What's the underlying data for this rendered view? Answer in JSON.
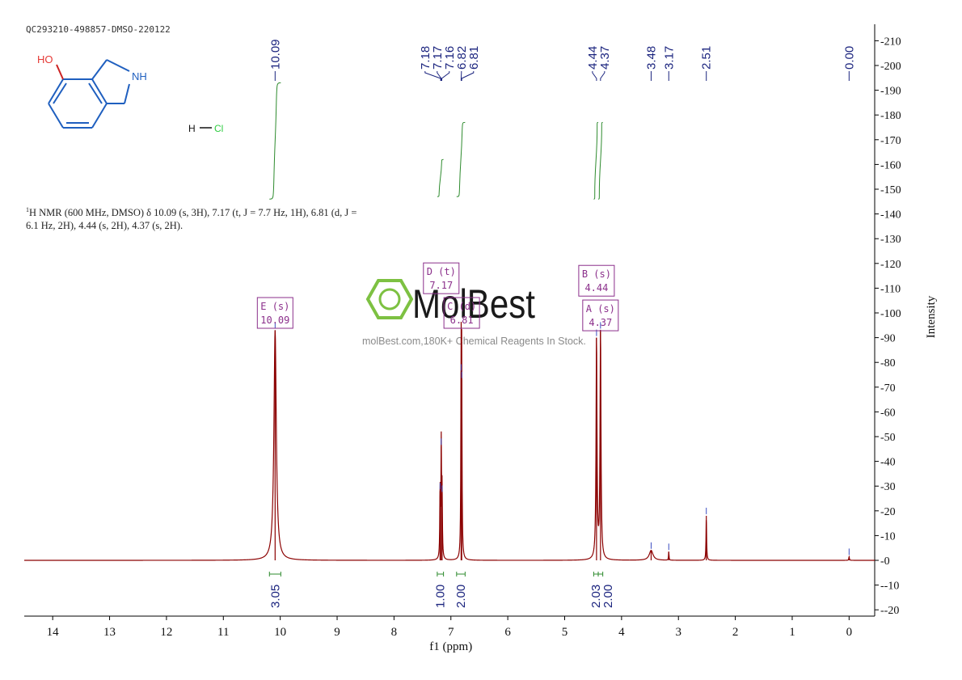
{
  "sample_id": "QC293210-498857-DMSO-220122",
  "description": {
    "nucleus_sup": "1",
    "text": "H NMR (600 MHz, DMSO) δ 10.09 (s, 3H), 7.17 (t, J = 7.7 Hz, 1H), 6.81 (d, J = 6.1 Hz, 2H), 4.44 (s, 2H), 4.37 (s, 2H)."
  },
  "structure": {
    "ho_label": "HO",
    "nh_label": "NH",
    "hcl_h": "H",
    "hcl_cl": "Cl"
  },
  "watermark": {
    "brand": "MolBest",
    "tagline": "molBest.com,180K+ Chemical Reagents In Stock."
  },
  "colors": {
    "spectrum": "#8b0000",
    "integral": "#2e8b2e",
    "peak_label": "#1a237e",
    "multiplet_box": "#8b2f8b",
    "axis": "#000000",
    "watermark": "#7dc142"
  },
  "chart_data": {
    "type": "line",
    "xlabel": "f1 (ppm)",
    "ylabel": "Intensity",
    "xlim": [
      14.5,
      -0.45
    ],
    "ylim": [
      -20,
      215
    ],
    "x_ticks": [
      14,
      13,
      12,
      11,
      10,
      9,
      8,
      7,
      6,
      5,
      4,
      3,
      2,
      1,
      0
    ],
    "y_ticks": [
      -20,
      -10,
      0,
      10,
      20,
      30,
      40,
      50,
      60,
      70,
      80,
      90,
      100,
      110,
      120,
      130,
      140,
      150,
      160,
      170,
      180,
      190,
      200,
      210
    ],
    "peaks": [
      {
        "ppm": 10.09,
        "height": 93,
        "width": 0.025
      },
      {
        "ppm": 7.19,
        "height": 28,
        "width": 0.006
      },
      {
        "ppm": 7.17,
        "height": 46,
        "width": 0.006
      },
      {
        "ppm": 7.155,
        "height": 27,
        "width": 0.006
      },
      {
        "ppm": 6.82,
        "height": 76,
        "width": 0.006
      },
      {
        "ppm": 6.81,
        "height": 73,
        "width": 0.006
      },
      {
        "ppm": 4.44,
        "height": 90,
        "width": 0.01
      },
      {
        "ppm": 4.37,
        "height": 93,
        "width": 0.01
      },
      {
        "ppm": 3.48,
        "height": 4,
        "width": 0.04
      },
      {
        "ppm": 3.17,
        "height": 3.5,
        "width": 0.005
      },
      {
        "ppm": 2.51,
        "height": 18,
        "width": 0.006
      },
      {
        "ppm": 0.0,
        "height": 1.5,
        "width": 0.006
      }
    ],
    "peak_labels": [
      {
        "text": "10.09",
        "ppm": 10.09
      },
      {
        "text": "7.18",
        "ppm": 7.18
      },
      {
        "text": "7.17",
        "ppm": 7.17
      },
      {
        "text": "7.16",
        "ppm": 7.16
      },
      {
        "text": "6.82",
        "ppm": 6.82
      },
      {
        "text": "6.81",
        "ppm": 6.81
      },
      {
        "text": "4.44",
        "ppm": 4.44
      },
      {
        "text": "4.37",
        "ppm": 4.37
      },
      {
        "text": "3.48",
        "ppm": 3.48
      },
      {
        "text": "3.17",
        "ppm": 3.17
      },
      {
        "text": "2.51",
        "ppm": 2.51
      },
      {
        "text": "0.00",
        "ppm": 0.0
      }
    ],
    "integrals": [
      {
        "value": "3.05",
        "from": 10.19,
        "to": 9.99,
        "base_pct": 146,
        "top_pct": 193
      },
      {
        "value": "1.00",
        "from": 7.24,
        "to": 7.13,
        "base_pct": 147,
        "top_pct": 162
      },
      {
        "value": "2.00",
        "from": 6.9,
        "to": 6.75,
        "base_pct": 147,
        "top_pct": 177
      },
      {
        "value": "2.03",
        "from": 4.49,
        "to": 4.41,
        "base_pct": 146,
        "top_pct": 177
      },
      {
        "value": "2.00",
        "from": 4.41,
        "to": 4.33,
        "base_pct": 146,
        "top_pct": 177
      }
    ],
    "multiplets": [
      {
        "letter": "E",
        "mult": "(s)",
        "shift": "10.09",
        "ppm": 10.09,
        "y": 100
      },
      {
        "letter": "D",
        "mult": "(t)",
        "shift": "7.17",
        "ppm": 7.17,
        "y": 114
      },
      {
        "letter": "C",
        "mult": "(d)",
        "shift": "6.81",
        "ppm": 6.81,
        "y": 100
      },
      {
        "letter": "B",
        "mult": "(s)",
        "shift": "4.44",
        "ppm": 4.44,
        "y": 113
      },
      {
        "letter": "A",
        "mult": "(s)",
        "shift": "4.37",
        "ppm": 4.37,
        "y": 99
      }
    ]
  }
}
